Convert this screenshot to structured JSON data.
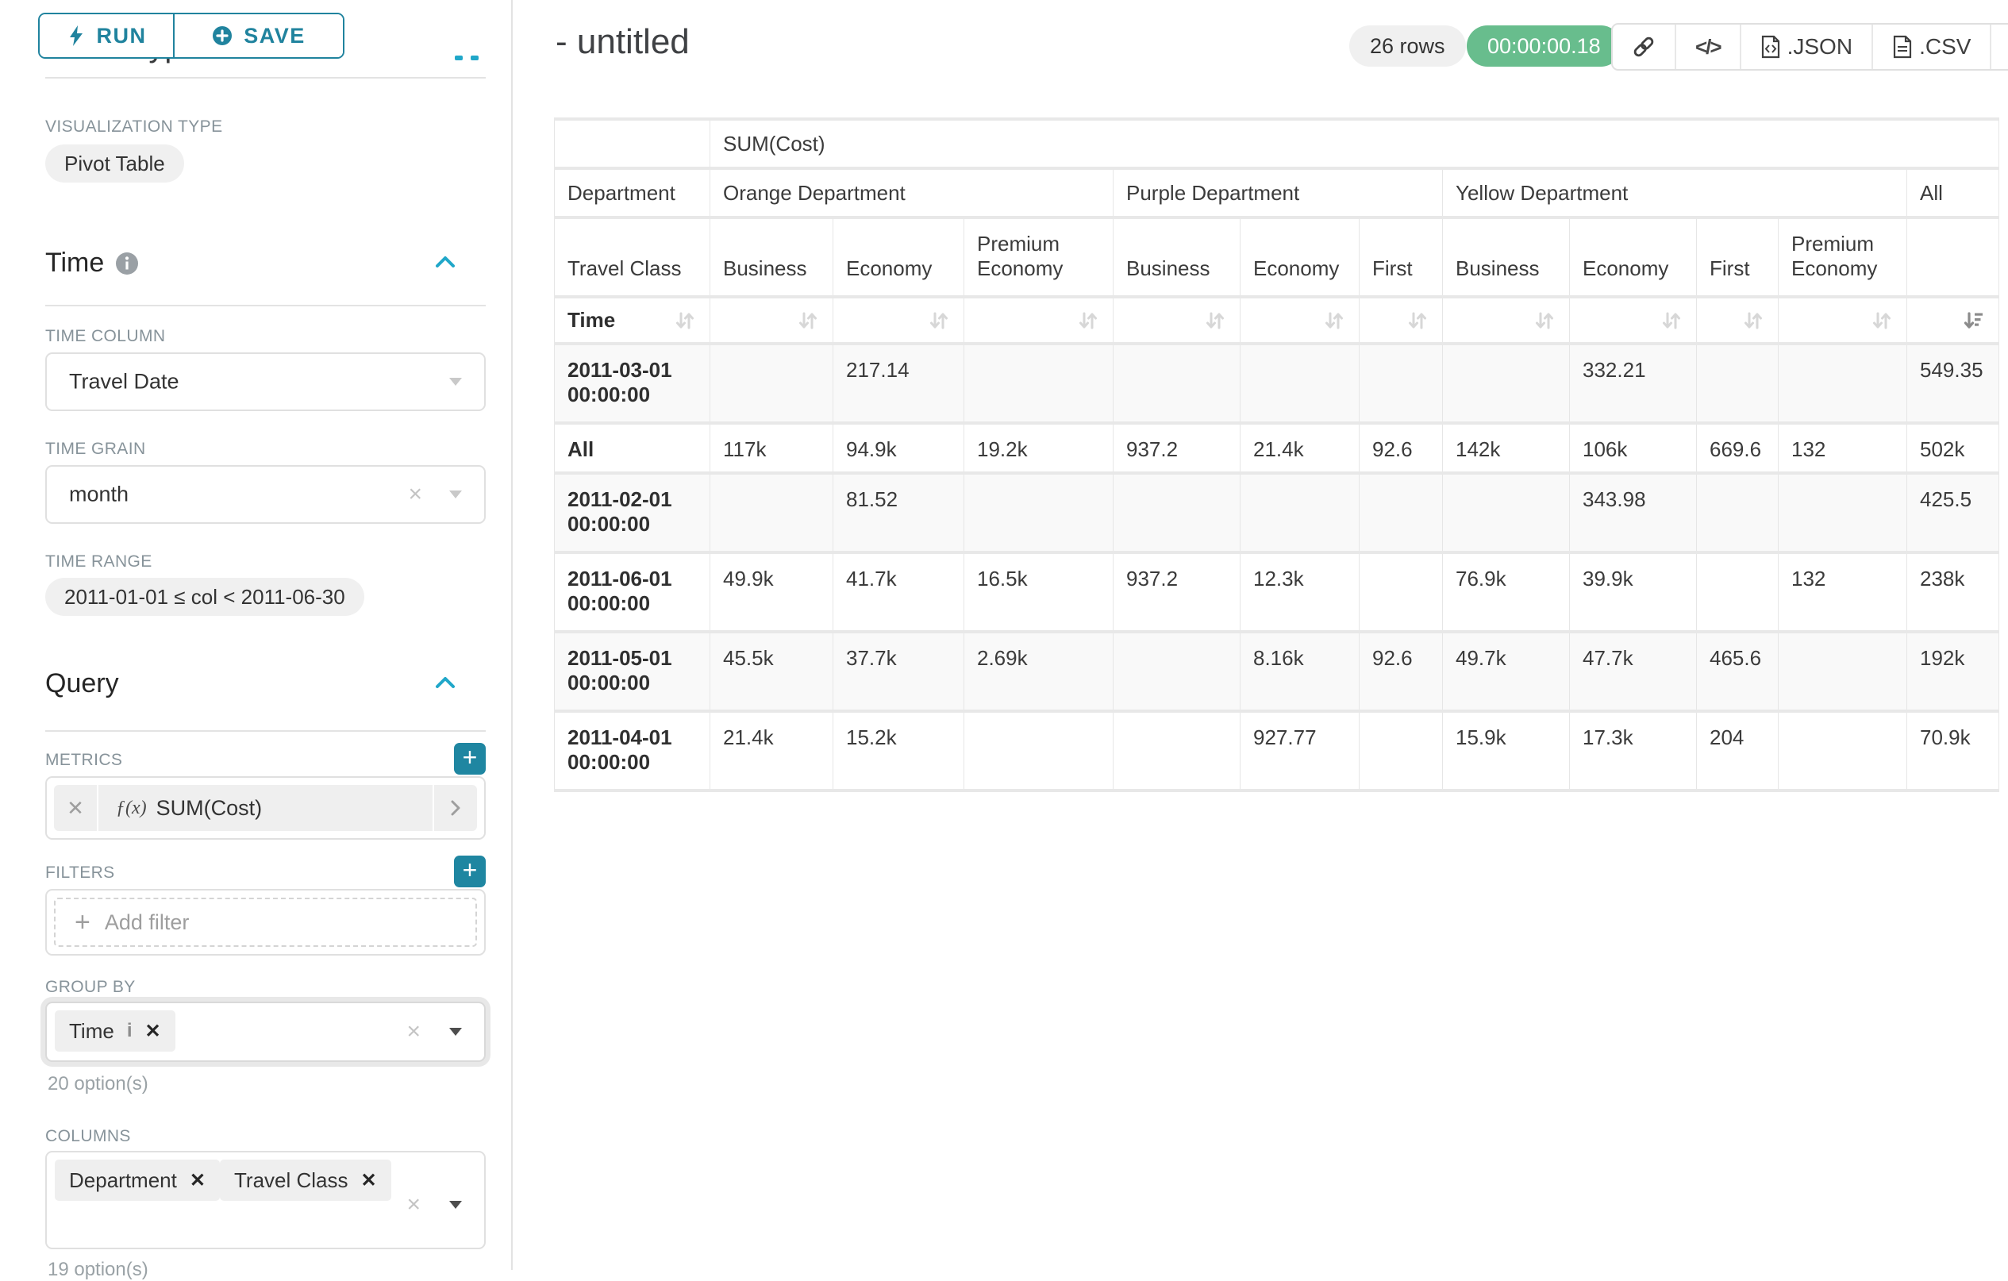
{
  "colors": {
    "accent": "#20839e",
    "accent_light": "#20a7c9",
    "success": "#68bd8d",
    "pill_gray": "#f0f0f0",
    "border": "#e0e0e0",
    "stripe": "#f9f9f9"
  },
  "panel": {
    "run_label": "RUN",
    "save_label": "SAVE",
    "chart_type_heading": "Chart Type",
    "visualization_type_label": "VISUALIZATION TYPE",
    "visualization_type_value": "Pivot Table",
    "time_section_title": "Time",
    "time_column_label": "TIME COLUMN",
    "time_column_value": "Travel Date",
    "time_grain_label": "TIME GRAIN",
    "time_grain_value": "month",
    "time_range_label": "TIME RANGE",
    "time_range_value": "2011-01-01 ≤ col < 2011-06-30",
    "query_section_title": "Query",
    "metrics_label": "METRICS",
    "metric_fx": "ƒ(x)",
    "metric_value": "SUM(Cost)",
    "filters_label": "FILTERS",
    "add_filter_label": "Add filter",
    "group_by_label": "GROUP BY",
    "group_by_tags": [
      "Time"
    ],
    "group_by_options_hint": "20 option(s)",
    "columns_label": "COLUMNS",
    "columns_tags": [
      "Department",
      "Travel Class"
    ],
    "columns_options_hint": "19 option(s)"
  },
  "header": {
    "title": "- untitled",
    "row_count": "26 rows",
    "timer": "00:00:00.18",
    "json_label": ".JSON",
    "csv_label": ".CSV"
  },
  "chart_data": {
    "type": "table",
    "metric_label": "SUM(Cost)",
    "department_label": "Department",
    "travel_class_label": "Travel Class",
    "time_label": "Time",
    "column_groups": [
      {
        "label": "Orange Department",
        "cols": [
          "Business",
          "Economy",
          "Premium Economy"
        ]
      },
      {
        "label": "Purple Department",
        "cols": [
          "Business",
          "Economy",
          "First"
        ]
      },
      {
        "label": "Yellow Department",
        "cols": [
          "Business",
          "Economy",
          "First",
          "Premium Economy"
        ]
      },
      {
        "label": "All",
        "cols": [
          ""
        ]
      }
    ],
    "rows": [
      {
        "label": "2011-03-01 00:00:00",
        "values": [
          "",
          "217.14",
          "",
          "",
          "",
          "",
          "",
          "332.21",
          "",
          "",
          "549.35"
        ]
      },
      {
        "label": "All",
        "values": [
          "117k",
          "94.9k",
          "19.2k",
          "937.2",
          "21.4k",
          "92.6",
          "142k",
          "106k",
          "669.6",
          "132",
          "502k"
        ]
      },
      {
        "label": "2011-02-01 00:00:00",
        "values": [
          "",
          "81.52",
          "",
          "",
          "",
          "",
          "",
          "343.98",
          "",
          "",
          "425.5"
        ]
      },
      {
        "label": "2011-06-01 00:00:00",
        "values": [
          "49.9k",
          "41.7k",
          "16.5k",
          "937.2",
          "12.3k",
          "",
          "76.9k",
          "39.9k",
          "",
          "132",
          "238k"
        ]
      },
      {
        "label": "2011-05-01 00:00:00",
        "values": [
          "45.5k",
          "37.7k",
          "2.69k",
          "",
          "8.16k",
          "92.6",
          "49.7k",
          "47.7k",
          "465.6",
          "",
          "192k"
        ]
      },
      {
        "label": "2011-04-01 00:00:00",
        "values": [
          "21.4k",
          "15.2k",
          "",
          "",
          "927.77",
          "",
          "15.9k",
          "17.3k",
          "204",
          "",
          "70.9k"
        ]
      }
    ],
    "sorted_column": "All",
    "sort_direction": "descending"
  }
}
